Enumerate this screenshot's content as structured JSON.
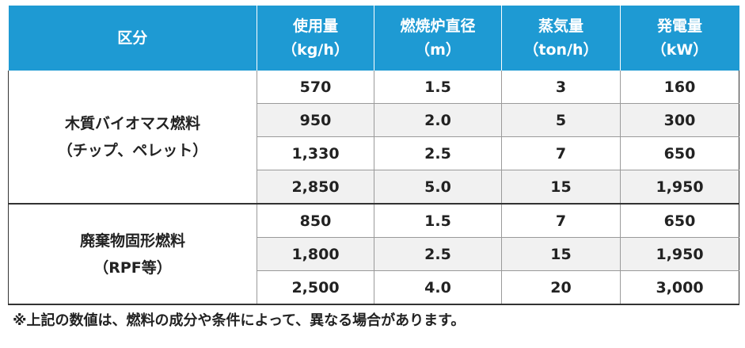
{
  "header": {
    "col0": "区分",
    "col1": [
      "使用量",
      "（kg/h）"
    ],
    "col2": [
      "燃焼炉直径",
      "（m）"
    ],
    "col3": [
      "蒸気量",
      "（ton/h）"
    ],
    "col4": [
      "発電量",
      "（kW）"
    ]
  },
  "groups": [
    {
      "label": [
        "木質バイオマス燃料",
        "（チップ、ペレット）"
      ],
      "rows": [
        [
          "570",
          "1.5",
          "3",
          "160"
        ],
        [
          "950",
          "2.0",
          "5",
          "300"
        ],
        [
          "1,330",
          "2.5",
          "7",
          "650"
        ],
        [
          "2,850",
          "5.0",
          "15",
          "1,950"
        ]
      ]
    },
    {
      "label": [
        "廃棄物固形燃料",
        "（RPF等）"
      ],
      "rows": [
        [
          "850",
          "1.5",
          "7",
          "650"
        ],
        [
          "1,800",
          "2.5",
          "15",
          "1,950"
        ],
        [
          "2,500",
          "4.0",
          "20",
          "3,000"
        ]
      ]
    }
  ],
  "note": "※上記の数値は、燃料の成分や条件によって、異なる場合があります。",
  "colors": {
    "header_bg": "#1e9ad3",
    "shade_bg": "#f1f1f1"
  }
}
